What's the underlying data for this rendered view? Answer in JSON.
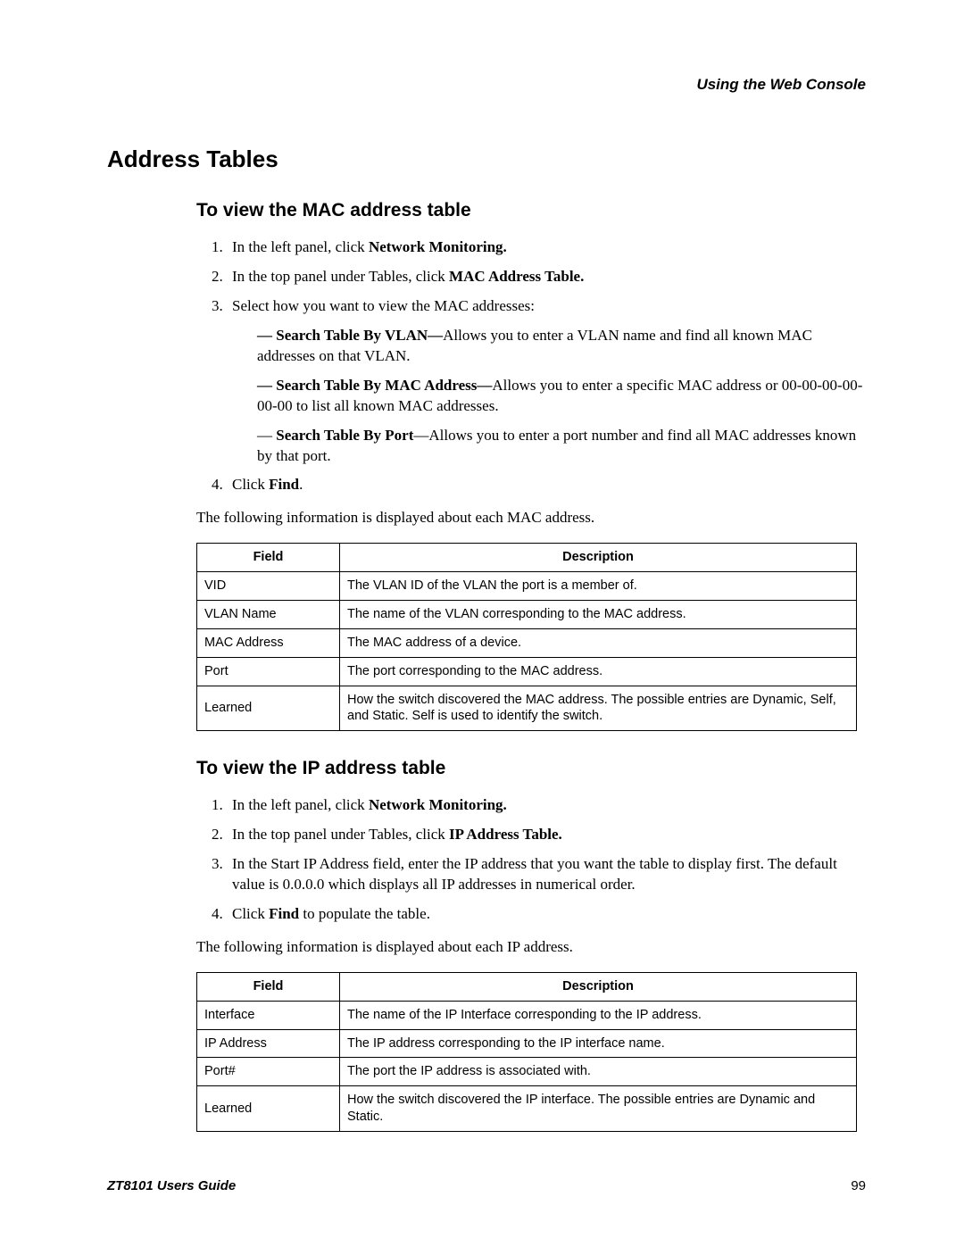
{
  "header": {
    "running": "Using the Web Console"
  },
  "title": "Address Tables",
  "section1": {
    "heading": "To view the MAC address table",
    "step1_pre": "In the left panel, click ",
    "step1_bold": "Network Monitoring.",
    "step2_pre": "In the top panel under Tables, click ",
    "step2_bold": "MAC Address Table.",
    "step3": "Select how you want to view the MAC addresses:",
    "sub1_bold": "— Search Table By VLAN—",
    "sub1_rest": "Allows you to enter a VLAN name and find all known MAC addresses on that VLAN.",
    "sub2_bold": "— Search Table By MAC Address—",
    "sub2_rest": "Allows you to enter a specific MAC address or 00-00-00-00-00-00 to list all known MAC addresses.",
    "sub3_dash": "— ",
    "sub3_bold": "Search Table By Port",
    "sub3_rest": "—Allows you to enter a port number and find all MAC addresses known by that port.",
    "step4_pre": "Click ",
    "step4_bold": "Find",
    "step4_post": ".",
    "after": "The following information is displayed about each MAC address.",
    "table": {
      "head_field": "Field",
      "head_desc": "Description",
      "rows": [
        {
          "f": "VID",
          "d": "The VLAN ID of the VLAN the port is a member of."
        },
        {
          "f": "VLAN Name",
          "d": "The name of the VLAN corresponding to the MAC address."
        },
        {
          "f": "MAC Address",
          "d": "The MAC address of a device."
        },
        {
          "f": "Port",
          "d": "The port corresponding to the MAC address."
        },
        {
          "f": "Learned",
          "d": "How the switch discovered the MAC address. The possible entries are Dynamic, Self, and Static. Self is used to identify the switch."
        }
      ]
    }
  },
  "section2": {
    "heading": "To view the IP address table",
    "step1_pre": "In the left panel, click ",
    "step1_bold": "Network Monitoring.",
    "step2_pre": "In the top panel under Tables, click ",
    "step2_bold": "IP Address Table.",
    "step3": "In the Start IP Address field, enter the IP address that you want the table to display first. The default value is 0.0.0.0 which displays all IP addresses in numerical order.",
    "step4_pre": "Click ",
    "step4_bold": "Find",
    "step4_post": " to populate the table.",
    "after": "The following information is displayed about each IP address.",
    "table": {
      "head_field": "Field",
      "head_desc": "Description",
      "rows": [
        {
          "f": "Interface",
          "d": "The name of the IP Interface corresponding to the IP address."
        },
        {
          "f": "IP Address",
          "d": "The IP address corresponding to the IP interface name."
        },
        {
          "f": "Port#",
          "d": "The port the IP address is associated with."
        },
        {
          "f": "Learned",
          "d": "How the switch discovered the IP interface. The possible entries are Dynamic and Static."
        }
      ]
    }
  },
  "footer": {
    "title": "ZT8101 Users Guide",
    "page": "99"
  }
}
